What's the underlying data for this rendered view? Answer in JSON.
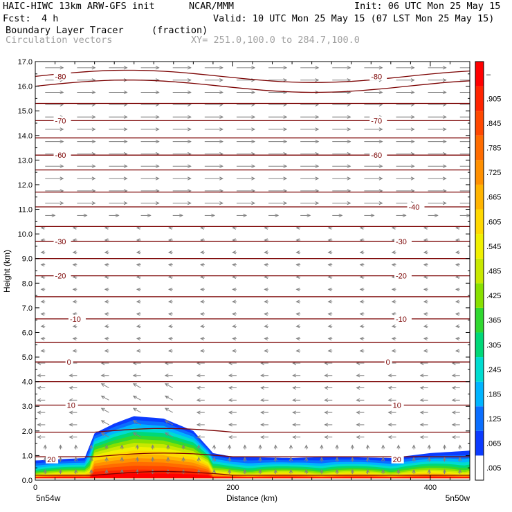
{
  "header": {
    "model": "HAIC-HIWC 13km ARW-GFS init",
    "org": "NCAR/MMM",
    "init": "Init: 06 UTC Mon 25 May 15",
    "fcst_label": "Fcst:",
    "fcst_value": "4 h",
    "valid": "Valid: 10 UTC Mon 25 May 15 (07 LST Mon 25 May 15)",
    "field1_name": "Boundary Layer Tracer",
    "field1_units": "(fraction)",
    "field2_name": "Circulation vectors",
    "xy_range": "XY= 251.0,100.0 to 284.7,100.0"
  },
  "colors": {
    "contour": "#7a0000",
    "vector": "#808080"
  },
  "chart_data": {
    "type": "heatmap",
    "ylabel": "Height (km)",
    "xlabel": "Distance (km)",
    "xlim": [
      0,
      440
    ],
    "ylim": [
      0,
      17
    ],
    "x_ticks": [
      "0",
      "200",
      "400"
    ],
    "x_tick_values": [
      0,
      200,
      400
    ],
    "y_ticks": [
      "0.0",
      "1.0",
      "2.0",
      "3.0",
      "4.0",
      "5.0",
      "6.0",
      "7.0",
      "8.0",
      "9.0",
      "10.0",
      "11.0",
      "12.0",
      "13.0",
      "14.0",
      "15.0",
      "16.0",
      "17.0"
    ],
    "left_location": "5n54w",
    "right_location": "5n50w",
    "colorbar_labels": [
      ".005",
      ".065",
      ".125",
      ".185",
      ".245",
      ".305",
      ".365",
      ".425",
      ".485",
      ".545",
      ".605",
      ".665",
      ".725",
      ".785",
      ".845",
      ".905",
      "–"
    ],
    "colorbar_colors": [
      "#ffffff",
      "#0b3bff",
      "#0a6eff",
      "#00b4ff",
      "#00dcd0",
      "#00d878",
      "#30d830",
      "#88e000",
      "#c8e800",
      "#f0f000",
      "#ffd800",
      "#ffb400",
      "#ff9000",
      "#ff6c00",
      "#ff4800",
      "#ff2400",
      "#ff0000"
    ],
    "temperature_contours": [
      {
        "label": "-80",
        "y": 16.4,
        "label_x": [
          20,
          340
        ]
      },
      {
        "label": "-70",
        "y": 14.6,
        "label_x": [
          20,
          340
        ]
      },
      {
        "label": "-60",
        "y": 13.2,
        "label_x": [
          20,
          340
        ]
      },
      {
        "label": "-40",
        "y": 11.1,
        "label_x": [
          378
        ]
      },
      {
        "label": "-30",
        "y": 9.7,
        "label_x": [
          20,
          365
        ]
      },
      {
        "label": "-20",
        "y": 8.3,
        "label_x": [
          20,
          365
        ]
      },
      {
        "label": "-10",
        "y": 6.55,
        "label_x": [
          35,
          365
        ]
      },
      {
        "label": "0",
        "y": 4.8,
        "label_x": [
          32,
          355
        ]
      },
      {
        "label": "10",
        "y": 3.05,
        "label_x": [
          32,
          362
        ]
      },
      {
        "label": "20",
        "y": 0.85,
        "label_x": [
          12,
          362
        ]
      }
    ],
    "tracer_profile": {
      "x": [
        0,
        50,
        60,
        80,
        100,
        130,
        160,
        180,
        200,
        260,
        300,
        360,
        400,
        440
      ],
      "top_height": [
        0.8,
        0.9,
        1.9,
        2.3,
        2.6,
        2.5,
        2.0,
        1.1,
        0.95,
        0.9,
        0.95,
        0.9,
        1.1,
        1.2
      ]
    }
  }
}
